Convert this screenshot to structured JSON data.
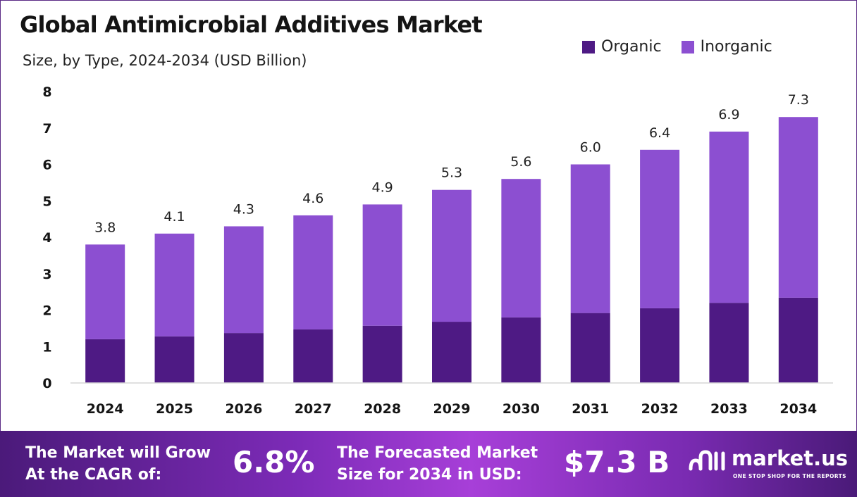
{
  "title": "Global Antimicrobial Additives Market",
  "subtitle": "Size, by Type, 2024-2034 (USD Billion)",
  "colors": {
    "organic": "#4e1a84",
    "inorganic": "#8c4fd1"
  },
  "chart_data": {
    "type": "bar",
    "stacked": true,
    "categories": [
      "2024",
      "2025",
      "2026",
      "2027",
      "2028",
      "2029",
      "2030",
      "2031",
      "2032",
      "2033",
      "2034"
    ],
    "series": [
      {
        "name": "Organic",
        "values": [
          1.2,
          1.28,
          1.37,
          1.47,
          1.57,
          1.68,
          1.8,
          1.92,
          2.05,
          2.2,
          2.34
        ]
      },
      {
        "name": "Inorganic",
        "values": [
          2.6,
          2.82,
          2.93,
          3.13,
          3.33,
          3.62,
          3.8,
          4.08,
          4.35,
          4.7,
          4.96
        ]
      }
    ],
    "totals": [
      "3.8",
      "4.1",
      "4.3",
      "4.6",
      "4.9",
      "5.3",
      "5.6",
      "6.0",
      "6.4",
      "6.9",
      "7.3"
    ],
    "yticks": [
      "0",
      "1",
      "2",
      "3",
      "4",
      "5",
      "6",
      "7",
      "8"
    ],
    "ylim": [
      0,
      8
    ],
    "legend_position": "top-right",
    "grid": false
  },
  "banner": {
    "cagr_label_line1": "The Market will Grow",
    "cagr_label_line2": "At the CAGR of:",
    "cagr_value": "6.8%",
    "forecast_label_line1": "The Forecasted Market",
    "forecast_label_line2": "Size for 2034 in USD:",
    "forecast_value": "$7.3 B"
  },
  "brand": {
    "name": "market.us",
    "tagline": "ONE STOP SHOP FOR THE REPORTS",
    "logo_icon": "market-us-logo-icon"
  }
}
